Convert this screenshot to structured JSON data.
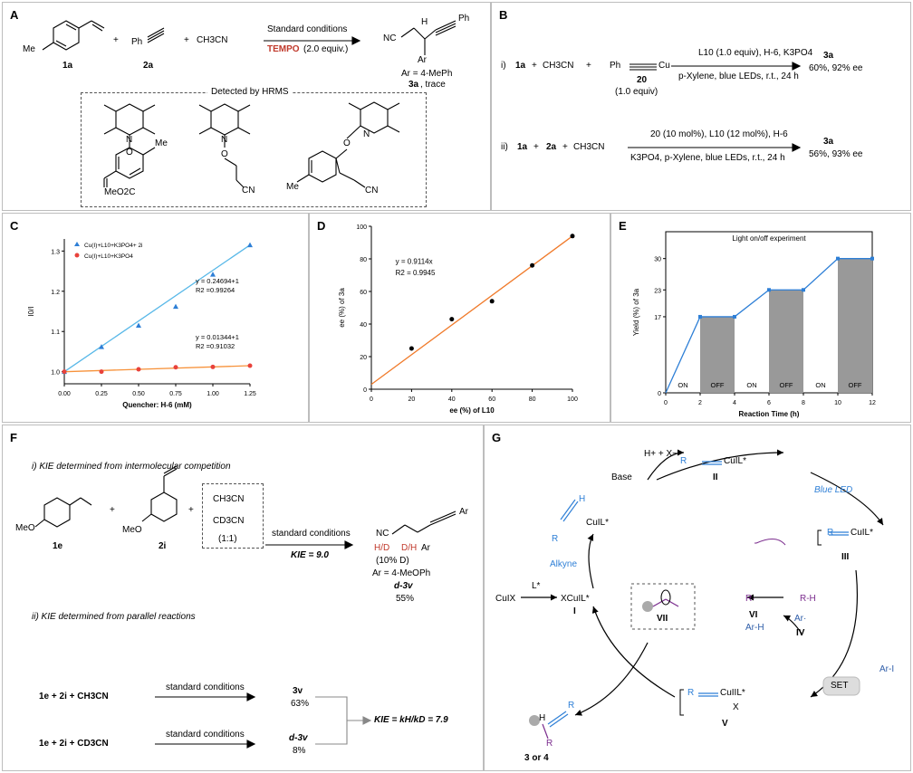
{
  "panels": {
    "A": {
      "label": "A",
      "r1": "1a",
      "r2": "2a",
      "plus": "+",
      "acn": "CH3CN",
      "cond": "Standard conditions",
      "tempo": "TEMPO",
      "tempo_eq": "(2.0 equiv.)",
      "ar": "Ar = 4-MePh",
      "prod": "3a",
      "prod_note": ", trace",
      "hrms": "Detected by HRMS",
      "me": "Me",
      "ph": "Ph",
      "nc": "NC",
      "cn": "CN",
      "meo2c": "MeO2C",
      "o": "O",
      "n": "N",
      "h": "H",
      "arr": "Ar"
    },
    "B": {
      "label": "B",
      "row1": {
        "tag": "i)",
        "r1": "1a",
        "acn": "CH3CN",
        "ph": "Ph",
        "cu": "Cu",
        "cpd": "20",
        "eq": "(1.0 equiv)",
        "cond_top": "L10 (1.0 equiv), H-6, K3PO4",
        "cond_bot": "p-Xylene, blue LEDs, r.t., 24 h",
        "prod": "3a",
        "yield": "60%, 92% ee"
      },
      "row2": {
        "tag": "ii)",
        "r1": "1a",
        "r2": "2a",
        "acn": "CH3CN",
        "cond_top": "20 (10 mol%), L10 (12 mol%), H-6",
        "cond_bot": "K3PO4, p-Xylene, blue LEDs, r.t., 24 h",
        "prod": "3a",
        "yield": "56%, 93% ee"
      }
    },
    "F": {
      "label": "F",
      "title1": "i) KIE determined from intermolecular competition",
      "r1": "1e",
      "r2": "2i",
      "meo": "MeO",
      "ch3cn": "CH3CN",
      "cd3cn": "CD3CN",
      "ratio": "(1:1)",
      "cond": "standard conditions",
      "kie": "KIE = 9.0",
      "nc": "NC",
      "hd": "H/D",
      "dh": "D/H",
      "ar": "Ar",
      "d_note": "(10% D)",
      "ar_def": "Ar = 4-MeOPh",
      "prod": "d-3v",
      "yield": "55%",
      "title2": "ii) KIE determined from parallel reactions",
      "p1": {
        "r": "1e  +  2i  +  CH3CN",
        "cond": "standard conditions",
        "prod": "3v",
        "yield": "63%"
      },
      "p2": {
        "r": "1e  +  2i  +  CD3CN",
        "cond": "standard conditions",
        "prod": "d-3v",
        "yield": "8%"
      },
      "kie2": "KIE = kH/kD = 7.9"
    },
    "G": {
      "label": "G",
      "hx": "H+ + X−",
      "base": "Base",
      "ii": "II",
      "blue_led": "Blue LED",
      "iii": "III",
      "alkyne": "Alkyne",
      "cuix": "CuIX",
      "l": "L*",
      "xcul": "XCuIL*",
      "i": "I",
      "vii": "VII",
      "vi": "VI",
      "rh": "R-H",
      "r_rad": "R·",
      "arh": "Ar-H",
      "ar_rad": "Ar·",
      "iv": "IV",
      "set": "SET",
      "ari": "Ar-I",
      "v": "V",
      "prod": "3 or 4",
      "x": "X",
      "cuil": "CuIL*",
      "cuiiil": "CuIIL*",
      "r": "R",
      "h": "H"
    }
  },
  "chart_data": [
    {
      "label": "C",
      "type": "scatter",
      "xlabel": "Quencher: H-6 (mM)",
      "ylabel": "I0/I",
      "xlim": [
        0,
        1.25
      ],
      "ylim": [
        0.97,
        1.33
      ],
      "xticks": [
        "0.00",
        "0.25",
        "0.50",
        "0.75",
        "1.00",
        "1.25"
      ],
      "yticks": [
        "1.0",
        "1.1",
        "1.2",
        "1.3"
      ],
      "legend": "top-left",
      "series": [
        {
          "name": "Cu(I)+L10+K3PO4+ 2i",
          "color": "#2e7fd6",
          "marker": "triangle",
          "x": [
            0,
            0.25,
            0.5,
            0.75,
            1.0,
            1.25
          ],
          "y": [
            1.0,
            1.062,
            1.115,
            1.162,
            1.242,
            1.315
          ],
          "fit": "y = 0.24694+1",
          "r2": "R2 =0.99264",
          "line_color": "#58b8e8"
        },
        {
          "name": "Cu(I)+L10+K3PO4",
          "color": "#e8423b",
          "marker": "circle",
          "x": [
            0,
            0.25,
            0.5,
            0.75,
            1.0,
            1.25
          ],
          "y": [
            1.0,
            1.0,
            1.006,
            1.011,
            1.012,
            1.015
          ],
          "fit": "y = 0.01344+1",
          "r2": "R2 =0.91032",
          "line_color": "#f7923a"
        }
      ]
    },
    {
      "label": "D",
      "type": "scatter",
      "xlabel": "ee (%) of L10",
      "ylabel": "ee (%) of 3a",
      "xlim": [
        0,
        100
      ],
      "ylim": [
        0,
        100
      ],
      "xticks": [
        "0",
        "20",
        "40",
        "60",
        "80",
        "100"
      ],
      "yticks": [
        "0",
        "20",
        "40",
        "60",
        "80",
        "100"
      ],
      "x": [
        20,
        40,
        60,
        80,
        100
      ],
      "y": [
        25,
        43,
        54,
        76,
        94
      ],
      "fit": "y = 0.9114x",
      "r2": "R2 = 0.9945",
      "line_color": "#f07a2a"
    },
    {
      "label": "E",
      "type": "line",
      "title": "Light  on/off  experiment",
      "xlabel": "Reaction  Time (h)",
      "ylabel": "Yield (%) of 3a",
      "xlim": [
        0,
        12
      ],
      "ylim": [
        0,
        36
      ],
      "xticks": [
        "0",
        "2",
        "4",
        "6",
        "8",
        "10",
        "12"
      ],
      "yticks": [
        "0",
        "17",
        "23",
        "30"
      ],
      "x": [
        0,
        2,
        4,
        6,
        8,
        10,
        12
      ],
      "y": [
        0,
        17,
        17,
        23,
        23,
        30,
        30
      ],
      "intervals": [
        "ON",
        "OFF",
        "ON",
        "OFF",
        "ON",
        "OFF"
      ],
      "line_color": "#2e7fd6",
      "bar_color": "#999999"
    }
  ]
}
